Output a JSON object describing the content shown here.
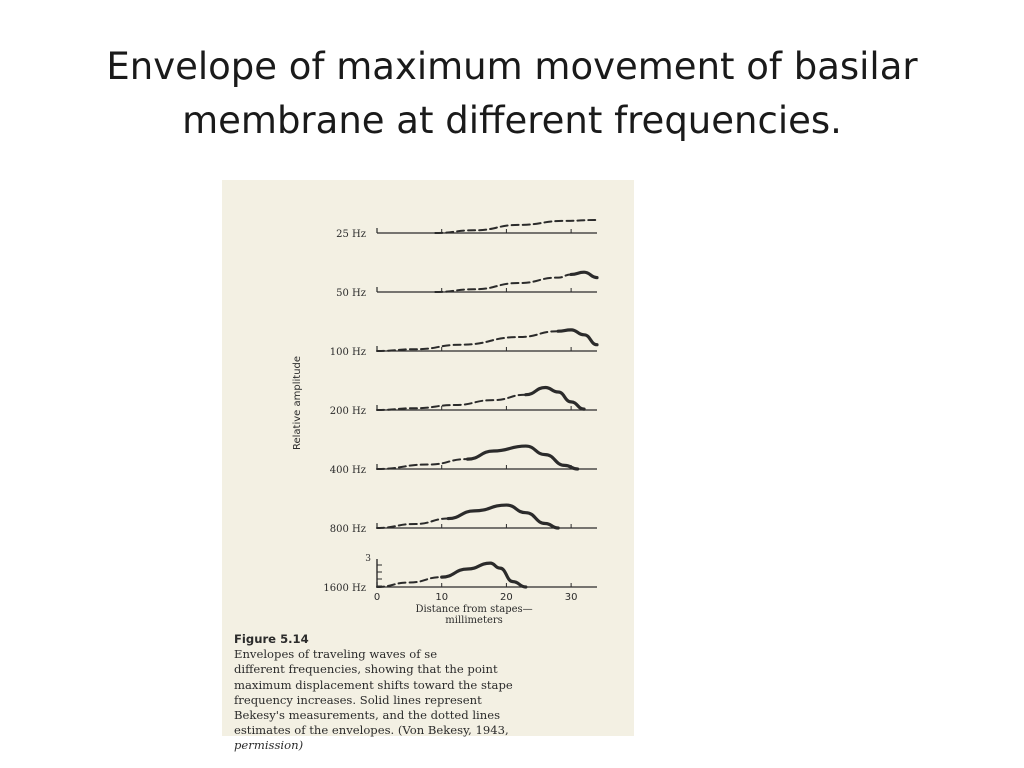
{
  "slide": {
    "title_line1": "Envelope of maximum movement of basilar",
    "title_line2": "membrane  at different frequencies."
  },
  "figure": {
    "caption_label": "Figure 5.14",
    "caption_line1": "Envelopes of traveling waves of se",
    "caption_line2": "different frequencies, showing that the point",
    "caption_line3": "maximum displacement shifts toward the stape",
    "caption_line4": "frequency increases. Solid lines represent",
    "caption_line5": "Bekesy's measurements, and the dotted lines",
    "caption_line6": "estimates of the envelopes. (Von Bekesy, 1943,",
    "caption_line7": "permission)"
  },
  "colors": {
    "ink": "#2b2b2b",
    "paper": "#f3f0e3"
  },
  "chart_data": {
    "type": "line",
    "xlabel_line1": "Distance from stapes—",
    "xlabel_line2": "millimeters",
    "ylabel": "Relative amplitude",
    "xlim": [
      0,
      35
    ],
    "x_ticks": [
      0,
      10,
      20,
      30
    ],
    "x_tick_labels": [
      "0",
      "10",
      "20",
      "30"
    ],
    "scale_label": "3",
    "series": [
      {
        "name": "25 Hz",
        "dashed": [
          [
            9,
            0
          ],
          [
            15,
            0.3
          ],
          [
            22,
            0.9
          ],
          [
            29,
            1.35
          ],
          [
            34,
            1.45
          ]
        ],
        "solid": []
      },
      {
        "name": "50 Hz",
        "dashed": [
          [
            9,
            0
          ],
          [
            15,
            0.3
          ],
          [
            22,
            1.0
          ],
          [
            28,
            1.6
          ],
          [
            30,
            1.95
          ]
        ],
        "solid": [
          [
            30,
            1.95
          ],
          [
            32,
            2.2
          ],
          [
            34,
            1.6
          ]
        ]
      },
      {
        "name": "100 Hz",
        "dashed": [
          [
            0,
            0
          ],
          [
            6,
            0.2
          ],
          [
            13,
            0.7
          ],
          [
            22,
            1.55
          ],
          [
            28,
            2.2
          ]
        ],
        "solid": [
          [
            28,
            2.2
          ],
          [
            30,
            2.35
          ],
          [
            32,
            1.8
          ],
          [
            34,
            0.7
          ]
        ]
      },
      {
        "name": "200 Hz",
        "dashed": [
          [
            0,
            0
          ],
          [
            6,
            0.2
          ],
          [
            12,
            0.55
          ],
          [
            18,
            1.1
          ],
          [
            23,
            1.7
          ]
        ],
        "solid": [
          [
            23,
            1.7
          ],
          [
            26,
            2.5
          ],
          [
            28,
            2.0
          ],
          [
            30,
            0.9
          ],
          [
            32,
            0.1
          ]
        ]
      },
      {
        "name": "400 Hz",
        "dashed": [
          [
            0,
            0
          ],
          [
            8,
            0.5
          ],
          [
            14,
            1.1
          ]
        ],
        "solid": [
          [
            14,
            1.1
          ],
          [
            18,
            2.0
          ],
          [
            23,
            2.55
          ],
          [
            26,
            1.6
          ],
          [
            29,
            0.4
          ],
          [
            31,
            0
          ]
        ]
      },
      {
        "name": "800 Hz",
        "dashed": [
          [
            0,
            0
          ],
          [
            6,
            0.45
          ],
          [
            11,
            1.05
          ]
        ],
        "solid": [
          [
            11,
            1.05
          ],
          [
            15,
            1.9
          ],
          [
            20,
            2.55
          ],
          [
            23,
            1.7
          ],
          [
            26,
            0.5
          ],
          [
            28,
            0
          ]
        ]
      },
      {
        "name": "1600 Hz",
        "dashed": [
          [
            0,
            0
          ],
          [
            5,
            0.5
          ],
          [
            10,
            1.1
          ]
        ],
        "solid": [
          [
            10,
            1.1
          ],
          [
            14,
            2.0
          ],
          [
            17.5,
            2.65
          ],
          [
            19,
            2.1
          ],
          [
            21,
            0.6
          ],
          [
            23,
            0
          ]
        ]
      }
    ]
  }
}
